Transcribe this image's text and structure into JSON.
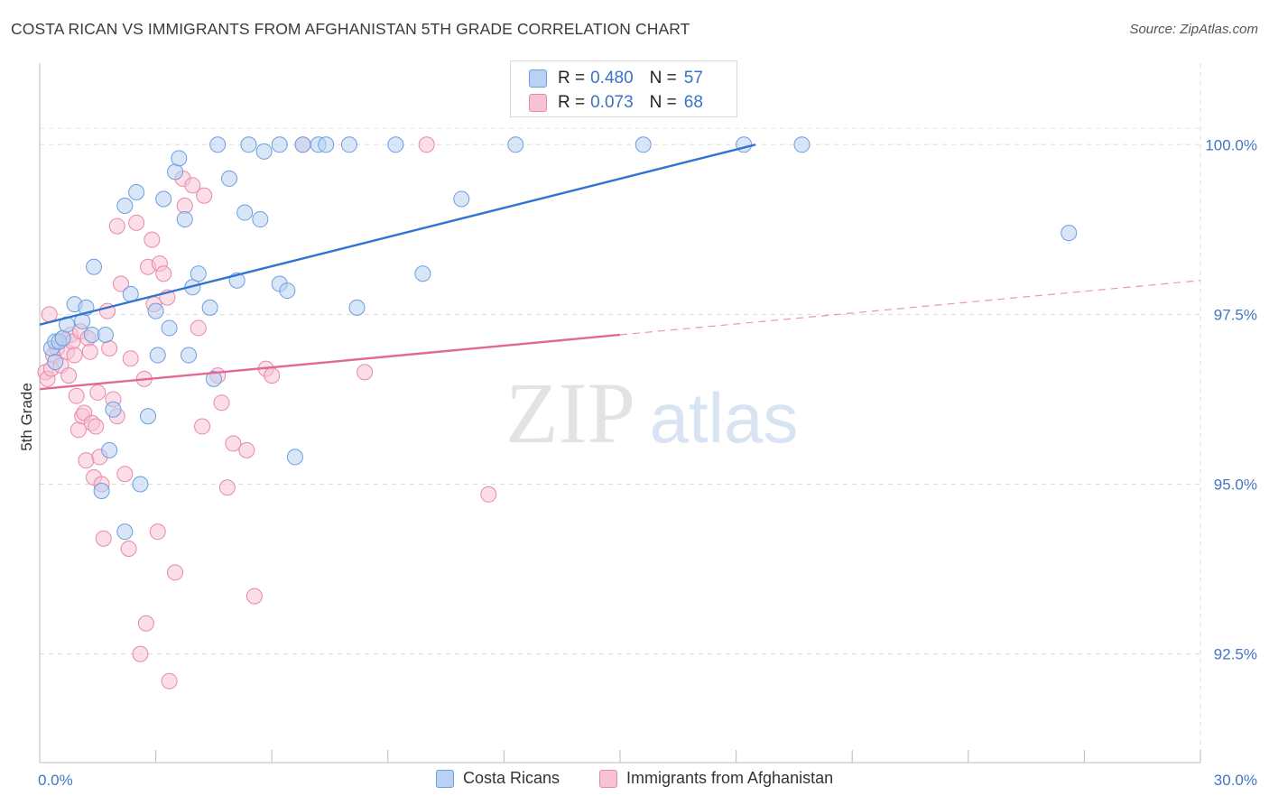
{
  "title": "COSTA RICAN VS IMMIGRANTS FROM AFGHANISTAN 5TH GRADE CORRELATION CHART",
  "source": "Source: ZipAtlas.com",
  "watermark": {
    "zip": "ZIP",
    "atlas": "atlas"
  },
  "legend": {
    "r_label": "R =",
    "n_label": "N =",
    "series": [
      {
        "name": "Costa Ricans",
        "r": "0.480",
        "n": "57"
      },
      {
        "name": "Immigrants from Afghanistan",
        "r": "0.073",
        "n": "68"
      }
    ]
  },
  "chart_data": {
    "type": "scatter",
    "title": "COSTA RICAN VS IMMIGRANTS FROM AFGHANISTAN 5TH GRADE CORRELATION CHART",
    "xlabel": "",
    "ylabel": "5th Grade",
    "xlim": [
      0,
      30
    ],
    "ylim": [
      90.9,
      101.2
    ],
    "x_ticks": [
      0,
      30
    ],
    "x_tick_labels": [
      "0.0%",
      "30.0%"
    ],
    "y_ticks": [
      92.5,
      95.0,
      97.5,
      100.0
    ],
    "y_tick_labels": [
      "92.5%",
      "95.0%",
      "97.5%",
      "100.0%"
    ],
    "grid": true,
    "colors": {
      "blue": "#6b9ee0",
      "blue_fill": "#b8d2f3",
      "blue_line": "#3174d0",
      "pink": "#e888a8",
      "pink_fill": "#f7c2d3",
      "pink_line": "#e06a95",
      "tick_label": "#4475c2"
    },
    "series": [
      {
        "name": "Costa Ricans",
        "color": "blue",
        "trend": {
          "x0": 0,
          "y0": 97.35,
          "x1": 18.5,
          "y1": 100.0,
          "dashed_to": 18.5
        },
        "points": [
          [
            0.3,
            97.0
          ],
          [
            0.4,
            97.1
          ],
          [
            0.5,
            97.1
          ],
          [
            0.6,
            97.15
          ],
          [
            0.4,
            96.8
          ],
          [
            0.7,
            97.35
          ],
          [
            0.9,
            97.65
          ],
          [
            1.1,
            97.4
          ],
          [
            1.2,
            97.6
          ],
          [
            1.35,
            97.2
          ],
          [
            1.4,
            98.2
          ],
          [
            1.7,
            97.2
          ],
          [
            1.8,
            95.5
          ],
          [
            1.9,
            96.1
          ],
          [
            2.2,
            94.3
          ],
          [
            2.2,
            99.1
          ],
          [
            2.35,
            97.8
          ],
          [
            2.5,
            99.3
          ],
          [
            2.6,
            95.0
          ],
          [
            2.8,
            96.0
          ],
          [
            3.0,
            97.55
          ],
          [
            3.05,
            96.9
          ],
          [
            3.2,
            99.2
          ],
          [
            3.35,
            97.3
          ],
          [
            3.5,
            99.6
          ],
          [
            3.6,
            99.8
          ],
          [
            3.75,
            98.9
          ],
          [
            3.85,
            96.9
          ],
          [
            3.95,
            97.9
          ],
          [
            4.1,
            98.1
          ],
          [
            4.4,
            97.6
          ],
          [
            4.5,
            96.55
          ],
          [
            4.6,
            100.0
          ],
          [
            4.9,
            99.5
          ],
          [
            5.1,
            98.0
          ],
          [
            5.3,
            99.0
          ],
          [
            5.4,
            100.0
          ],
          [
            5.7,
            98.9
          ],
          [
            5.8,
            99.9
          ],
          [
            6.2,
            100.0
          ],
          [
            6.2,
            97.95
          ],
          [
            6.4,
            97.85
          ],
          [
            6.6,
            95.4
          ],
          [
            6.8,
            100.0
          ],
          [
            7.2,
            100.0
          ],
          [
            7.4,
            100.0
          ],
          [
            8.0,
            100.0
          ],
          [
            8.2,
            97.6
          ],
          [
            9.2,
            100.0
          ],
          [
            9.9,
            98.1
          ],
          [
            10.9,
            99.2
          ],
          [
            12.3,
            100.0
          ],
          [
            15.6,
            100.0
          ],
          [
            18.2,
            100.0
          ],
          [
            19.7,
            100.0
          ],
          [
            26.6,
            98.7
          ],
          [
            1.6,
            94.9
          ]
        ]
      },
      {
        "name": "Immigrants from Afghanistan",
        "color": "pink",
        "trend": {
          "x0": 0,
          "y0": 96.4,
          "x1": 15.0,
          "y1": 97.2,
          "dashed_to": 30.0
        },
        "points": [
          [
            0.15,
            96.65
          ],
          [
            0.2,
            96.55
          ],
          [
            0.25,
            97.5
          ],
          [
            0.3,
            96.7
          ],
          [
            0.35,
            96.9
          ],
          [
            0.45,
            97.0
          ],
          [
            0.55,
            96.75
          ],
          [
            0.6,
            97.15
          ],
          [
            0.7,
            96.95
          ],
          [
            0.75,
            96.6
          ],
          [
            0.8,
            97.2
          ],
          [
            0.85,
            97.1
          ],
          [
            0.9,
            96.9
          ],
          [
            0.95,
            96.3
          ],
          [
            1.0,
            95.8
          ],
          [
            1.05,
            97.25
          ],
          [
            1.1,
            96.0
          ],
          [
            1.15,
            96.05
          ],
          [
            1.2,
            95.35
          ],
          [
            1.25,
            97.15
          ],
          [
            1.3,
            96.95
          ],
          [
            1.35,
            95.9
          ],
          [
            1.4,
            95.1
          ],
          [
            1.45,
            95.85
          ],
          [
            1.5,
            96.35
          ],
          [
            1.55,
            95.4
          ],
          [
            1.6,
            95.0
          ],
          [
            1.65,
            94.2
          ],
          [
            1.75,
            97.55
          ],
          [
            1.8,
            97.0
          ],
          [
            1.9,
            96.25
          ],
          [
            2.0,
            96.0
          ],
          [
            2.1,
            97.95
          ],
          [
            2.2,
            95.15
          ],
          [
            2.3,
            94.05
          ],
          [
            2.35,
            96.85
          ],
          [
            2.5,
            98.85
          ],
          [
            2.6,
            92.5
          ],
          [
            2.7,
            96.55
          ],
          [
            2.75,
            92.95
          ],
          [
            2.8,
            98.2
          ],
          [
            2.9,
            98.6
          ],
          [
            2.95,
            97.65
          ],
          [
            3.05,
            94.3
          ],
          [
            3.1,
            98.25
          ],
          [
            3.2,
            98.1
          ],
          [
            3.3,
            97.75
          ],
          [
            3.35,
            92.1
          ],
          [
            3.5,
            93.7
          ],
          [
            3.7,
            99.5
          ],
          [
            3.75,
            99.1
          ],
          [
            3.95,
            99.4
          ],
          [
            4.1,
            97.3
          ],
          [
            4.2,
            95.85
          ],
          [
            4.25,
            99.25
          ],
          [
            4.6,
            96.6
          ],
          [
            4.7,
            96.2
          ],
          [
            4.85,
            94.95
          ],
          [
            5.0,
            95.6
          ],
          [
            5.35,
            95.5
          ],
          [
            5.55,
            93.35
          ],
          [
            5.85,
            96.7
          ],
          [
            6.0,
            96.6
          ],
          [
            6.8,
            100.0
          ],
          [
            8.4,
            96.65
          ],
          [
            10.0,
            100.0
          ],
          [
            11.6,
            94.85
          ],
          [
            2.0,
            98.8
          ]
        ]
      }
    ]
  }
}
